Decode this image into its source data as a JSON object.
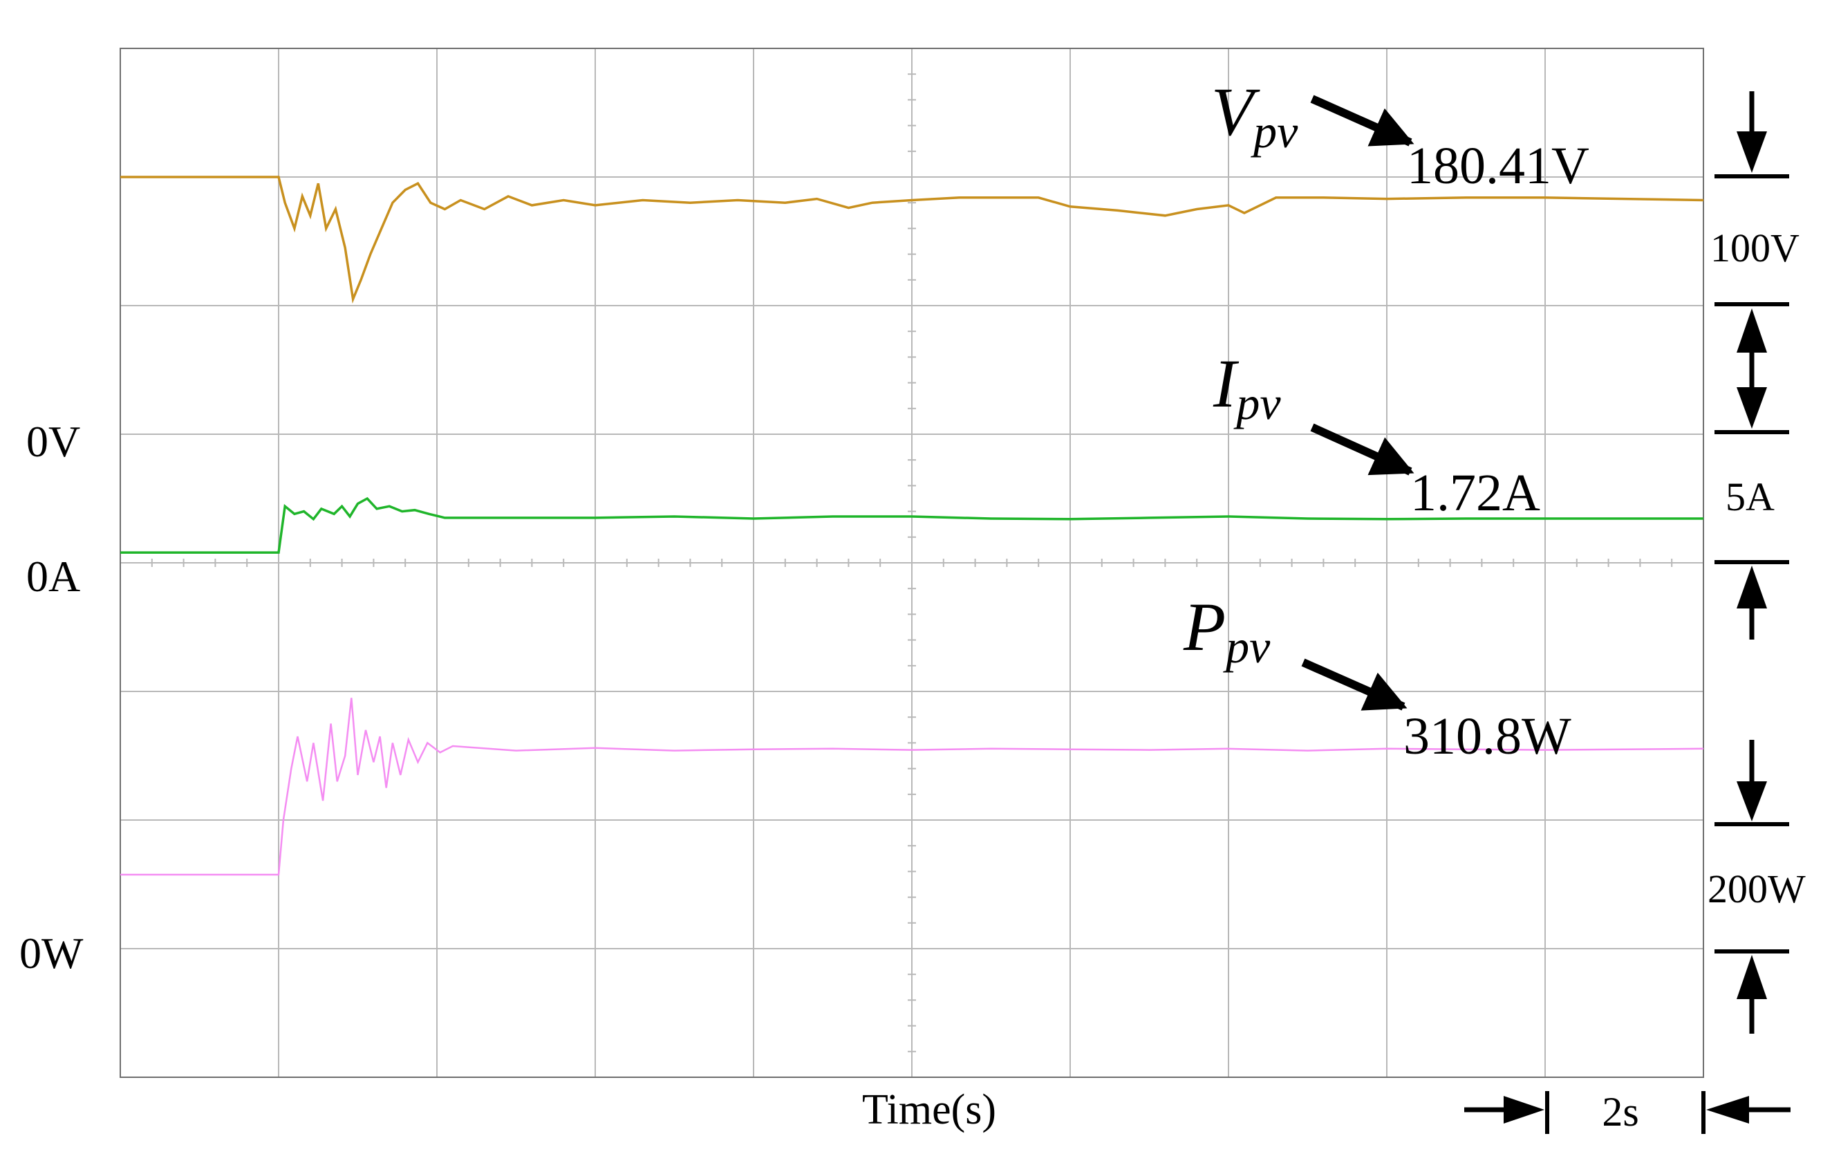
{
  "colors": {
    "voltage": "#c8901e",
    "current": "#1fb52a",
    "power": "#f48df2",
    "grid": "#b8b8b8",
    "axis": "#6e6e6e",
    "text": "#000000"
  },
  "chart_data": {
    "type": "line",
    "xlabel": "Time(s)",
    "time_per_div_label": "2s",
    "grid": true,
    "x_divisions": 10,
    "y_divisions": 8,
    "series": [
      {
        "name": "Vpv",
        "symbol": "V",
        "subscript": "pv",
        "readout": "180.41V",
        "zero_label": "0V",
        "scale_label": "100V",
        "unit": "V",
        "zero_div": 3,
        "units_per_div": 100,
        "color_key": "voltage",
        "points": [
          [
            0.0,
            200.0
          ],
          [
            1.0,
            200.0
          ],
          [
            1.04,
            180.0
          ],
          [
            1.1,
            160.0
          ],
          [
            1.15,
            185.0
          ],
          [
            1.2,
            170.0
          ],
          [
            1.25,
            195.0
          ],
          [
            1.3,
            160.0
          ],
          [
            1.36,
            175.0
          ],
          [
            1.42,
            145.0
          ],
          [
            1.47,
            105.0
          ],
          [
            1.52,
            120.0
          ],
          [
            1.58,
            140.0
          ],
          [
            1.65,
            160.0
          ],
          [
            1.72,
            180.0
          ],
          [
            1.8,
            190.0
          ],
          [
            1.88,
            195.0
          ],
          [
            1.96,
            180.0
          ],
          [
            2.05,
            175.0
          ],
          [
            2.15,
            182.0
          ],
          [
            2.3,
            175.0
          ],
          [
            2.45,
            185.0
          ],
          [
            2.6,
            178.0
          ],
          [
            2.8,
            182.0
          ],
          [
            3.0,
            178.0
          ],
          [
            3.3,
            182.0
          ],
          [
            3.6,
            180.0
          ],
          [
            3.9,
            182.0
          ],
          [
            4.2,
            180.0
          ],
          [
            4.4,
            183.0
          ],
          [
            4.6,
            176.0
          ],
          [
            4.75,
            180.0
          ],
          [
            5.0,
            182.0
          ],
          [
            5.3,
            184.0
          ],
          [
            5.8,
            184.0
          ],
          [
            6.0,
            177.0
          ],
          [
            6.3,
            174.0
          ],
          [
            6.6,
            170.0
          ],
          [
            6.8,
            175.0
          ],
          [
            7.0,
            178.0
          ],
          [
            7.1,
            172.0
          ],
          [
            7.3,
            184.0
          ],
          [
            7.6,
            184.0
          ],
          [
            8.0,
            183.0
          ],
          [
            8.5,
            184.0
          ],
          [
            9.0,
            184.0
          ],
          [
            9.5,
            183.0
          ],
          [
            10.0,
            182.0
          ]
        ]
      },
      {
        "name": "Ipv",
        "symbol": "I",
        "subscript": "pv",
        "readout": "1.72A",
        "zero_label": "0A",
        "scale_label": "5A",
        "unit": "A",
        "zero_div": 4,
        "units_per_div": 5,
        "color_key": "current",
        "points": [
          [
            0.0,
            0.4
          ],
          [
            1.0,
            0.4
          ],
          [
            1.04,
            2.2
          ],
          [
            1.1,
            1.9
          ],
          [
            1.16,
            2.0
          ],
          [
            1.22,
            1.7
          ],
          [
            1.27,
            2.1
          ],
          [
            1.35,
            1.9
          ],
          [
            1.4,
            2.2
          ],
          [
            1.45,
            1.8
          ],
          [
            1.5,
            2.3
          ],
          [
            1.56,
            2.5
          ],
          [
            1.62,
            2.1
          ],
          [
            1.7,
            2.2
          ],
          [
            1.78,
            2.0
          ],
          [
            1.86,
            2.05
          ],
          [
            1.95,
            1.9
          ],
          [
            2.05,
            1.75
          ],
          [
            2.5,
            1.75
          ],
          [
            3.0,
            1.75
          ],
          [
            3.5,
            1.8
          ],
          [
            4.0,
            1.72
          ],
          [
            4.5,
            1.8
          ],
          [
            5.0,
            1.8
          ],
          [
            5.5,
            1.72
          ],
          [
            6.0,
            1.7
          ],
          [
            6.5,
            1.75
          ],
          [
            7.0,
            1.8
          ],
          [
            7.5,
            1.72
          ],
          [
            8.0,
            1.7
          ],
          [
            8.5,
            1.72
          ],
          [
            9.0,
            1.72
          ],
          [
            9.5,
            1.72
          ],
          [
            10.0,
            1.72
          ]
        ]
      },
      {
        "name": "Ppv",
        "symbol": "P",
        "subscript": "pv",
        "readout": "310.8W",
        "zero_label": "0W",
        "scale_label": "200W",
        "unit": "W",
        "zero_div": 7,
        "units_per_div": 200,
        "color_key": "power",
        "points": [
          [
            0.0,
            115.0
          ],
          [
            1.0,
            115.0
          ],
          [
            1.03,
            200.0
          ],
          [
            1.08,
            280.0
          ],
          [
            1.12,
            330.0
          ],
          [
            1.18,
            260.0
          ],
          [
            1.22,
            320.0
          ],
          [
            1.28,
            230.0
          ],
          [
            1.33,
            350.0
          ],
          [
            1.37,
            260.0
          ],
          [
            1.42,
            300.0
          ],
          [
            1.46,
            390.0
          ],
          [
            1.5,
            270.0
          ],
          [
            1.55,
            340.0
          ],
          [
            1.6,
            290.0
          ],
          [
            1.64,
            330.0
          ],
          [
            1.68,
            250.0
          ],
          [
            1.72,
            320.0
          ],
          [
            1.77,
            270.0
          ],
          [
            1.82,
            325.0
          ],
          [
            1.88,
            290.0
          ],
          [
            1.94,
            320.0
          ],
          [
            2.02,
            305.0
          ],
          [
            2.1,
            315.0
          ],
          [
            2.5,
            308.0
          ],
          [
            3.0,
            312.0
          ],
          [
            3.5,
            308.0
          ],
          [
            4.0,
            310.0
          ],
          [
            4.5,
            311.0
          ],
          [
            5.0,
            309.0
          ],
          [
            5.5,
            311.0
          ],
          [
            6.0,
            310.0
          ],
          [
            6.5,
            309.0
          ],
          [
            7.0,
            311.0
          ],
          [
            7.5,
            308.0
          ],
          [
            8.0,
            311.0
          ],
          [
            8.5,
            310.0
          ],
          [
            9.0,
            309.0
          ],
          [
            9.5,
            310.0
          ],
          [
            10.0,
            311.0
          ]
        ]
      }
    ]
  }
}
